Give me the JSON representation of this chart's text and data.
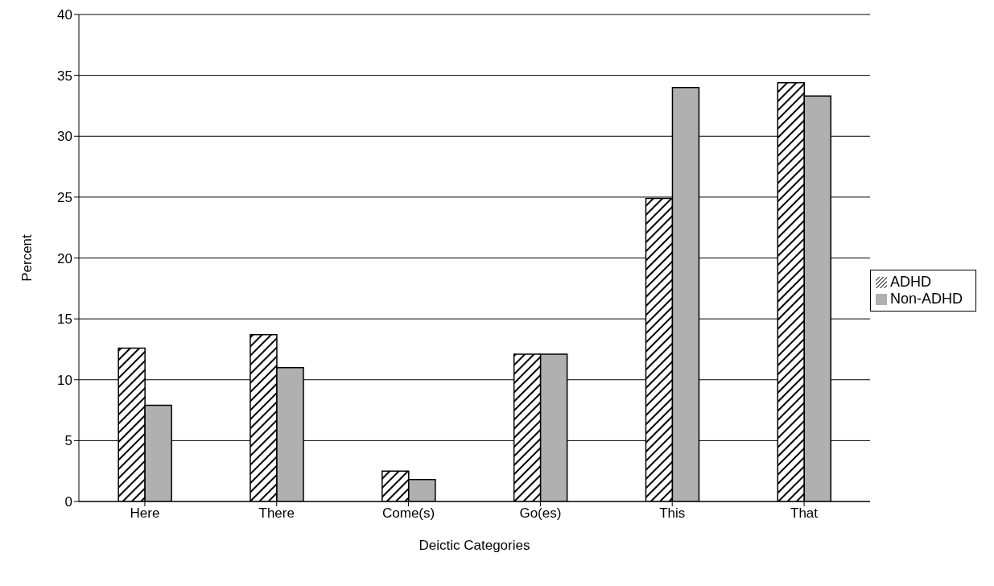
{
  "chart_data": {
    "type": "bar",
    "xlabel": "Deictic Categories",
    "ylabel": "Percent",
    "categories": [
      "Here",
      "There",
      "Come(s)",
      "Go(es)",
      "This",
      "That"
    ],
    "series": [
      {
        "name": "ADHD",
        "color": "#000000",
        "values": [
          12.6,
          13.7,
          2.5,
          12.1,
          24.9,
          34.4
        ]
      },
      {
        "name": "Non-ADHD",
        "color": "#b0b0b0",
        "values": [
          7.9,
          11.0,
          1.8,
          12.1,
          34.0,
          33.3
        ]
      }
    ],
    "ylim": [
      0,
      40
    ],
    "yticks": [
      0,
      5,
      10,
      15,
      20,
      25,
      30,
      35,
      40
    ],
    "grid": "y",
    "legend": "right"
  }
}
